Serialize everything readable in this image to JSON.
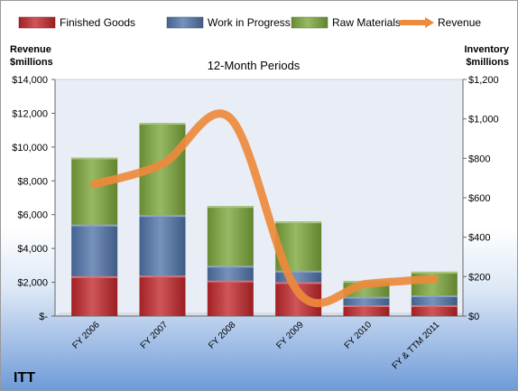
{
  "company": "ITT",
  "chart_data": {
    "type": "bar",
    "title": "12-Month Periods",
    "categories": [
      "FY 2006",
      "FY 2007",
      "FY 2008",
      "FY 2009",
      "FY 2010",
      "FY & TTM 2011"
    ],
    "stacked": true,
    "series": [
      {
        "name": "Finished Goods",
        "axis": "right",
        "color": "#c0262a",
        "values": [
          202,
          205,
          180,
          172,
          55,
          55
        ]
      },
      {
        "name": "Work in Progress",
        "axis": "right",
        "color": "#4f73a8",
        "values": [
          262,
          307,
          75,
          58,
          43,
          50
        ]
      },
      {
        "name": "Raw Materials",
        "axis": "right",
        "color": "#7aa53a",
        "values": [
          340,
          468,
          303,
          250,
          80,
          120
        ]
      },
      {
        "name": "Revenue",
        "type": "line",
        "axis": "left",
        "color": "#ed8a3b",
        "values": [
          7800,
          9000,
          11700,
          1400,
          1900,
          2200
        ]
      }
    ],
    "y_left": {
      "label": "Revenue\n$millions",
      "range": [
        0,
        14000
      ],
      "ticks": [
        "$-",
        "$2,000",
        "$4,000",
        "$6,000",
        "$8,000",
        "$10,000",
        "$12,000",
        "$14,000"
      ]
    },
    "y_right": {
      "label": "Inventory\n$millions",
      "range": [
        0,
        1200
      ],
      "ticks": [
        "$0",
        "$200",
        "$400",
        "$600",
        "$800",
        "$1,000",
        "$1,200"
      ]
    },
    "legend_position": "top",
    "grid": false
  }
}
